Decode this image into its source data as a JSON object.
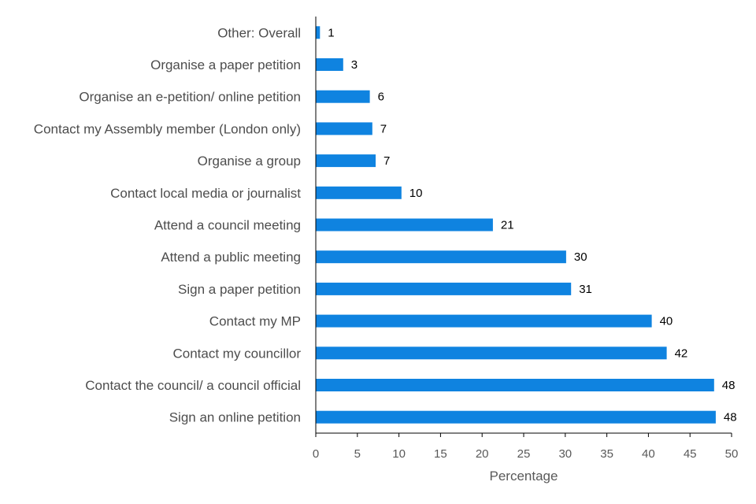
{
  "chart_data": {
    "type": "bar",
    "orientation": "horizontal",
    "categories": [
      "Other: Overall",
      "Organise a paper petition",
      "Organise an e-petition/ online petition",
      "Contact my Assembly member (London only)",
      "Organise a group",
      "Contact local media or journalist",
      "Attend a council meeting",
      "Attend a public meeting",
      "Sign a paper petition",
      "Contact my MP",
      "Contact my councillor",
      "Contact the council/ a council official",
      "Sign an online petition"
    ],
    "values": [
      0.5,
      3.3,
      6.5,
      6.8,
      7.2,
      10.3,
      21.3,
      30.1,
      30.7,
      40.4,
      42.2,
      47.9,
      48.1
    ],
    "value_labels": [
      "1",
      "3",
      "6",
      "7",
      "7",
      "10",
      "21",
      "30",
      "31",
      "40",
      "42",
      "48",
      "48"
    ],
    "xlabel": "Percentage",
    "ylabel": "",
    "xlim": [
      0,
      50
    ],
    "xticks": [
      "0",
      "5",
      "10",
      "15",
      "20",
      "25",
      "30",
      "35",
      "40",
      "45",
      "50"
    ],
    "bar_color": "#0f83e0",
    "grid": false,
    "legend": "none"
  }
}
